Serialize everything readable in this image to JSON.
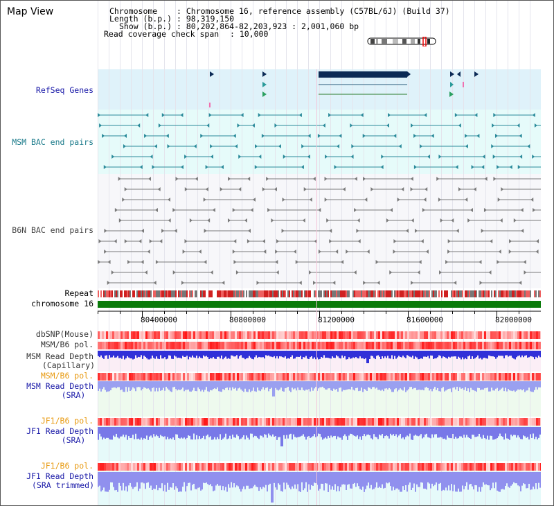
{
  "title": "Map View",
  "info": {
    "chromosome_key": "Chromosome   ",
    "chromosome_val": ": Chromosome 16, reference assembly (C57BL/6J) (Build 37)",
    "length_key": "Length (b.p.)",
    "length_val": ": 98,319,150",
    "show_key": "Show (b.p.)",
    "show_val": ": 80,202,864-82,203,923 : 2,001,060 bp",
    "span_key": "Read coverage check span",
    "span_val": ": 10,000"
  },
  "tracks": {
    "refseq": "RefSeq Genes",
    "msm_bac": "MSM BAC end pairs",
    "b6n_bac": "B6N BAC end pairs",
    "repeat": "Repeat",
    "chromosome": "chromosome 16",
    "dbsnp": "dbSNP(Mouse)",
    "msm_b6_pol_1": "MSM/B6 pol.",
    "msm_read_depth_cap_1": "MSM Read Depth",
    "msm_read_depth_cap_2": "(Capillary)",
    "msm_b6_pol_2": "MSM/B6 pol.",
    "msm_read_depth_sra_1": "MSM Read Depth",
    "msm_read_depth_sra_2": "(SRA)",
    "jf1_b6_pol_1": "JF1/B6 pol.",
    "jf1_read_depth_sra_1": "JF1 Read Depth",
    "jf1_read_depth_sra_2": "(SRA)",
    "jf1_b6_pol_2": "JF1/B6 pol.",
    "jf1_read_depth_trim_1": "JF1 Read Depth",
    "jf1_read_depth_trim_2": "(SRA trimmed)"
  },
  "axis": {
    "ticks": [
      "80400000",
      "80800000",
      "81200000",
      "81600000",
      "82000000"
    ]
  },
  "colors": {
    "refseq_bg": "#dff2fa",
    "msm_bg": "#e6fbfa",
    "b6n_bg": "#f7f7fa",
    "gene_dark": "#0b2a55",
    "gene_teal": "#1f7f7f",
    "bac_teal": "#2a8a9a",
    "bac_gray": "#7a7a7a",
    "chrom_green": "#0a7a0a",
    "label_blue": "#1a1aa8",
    "label_orange": "#e89a10",
    "label_teal": "#1a7a8a"
  }
}
